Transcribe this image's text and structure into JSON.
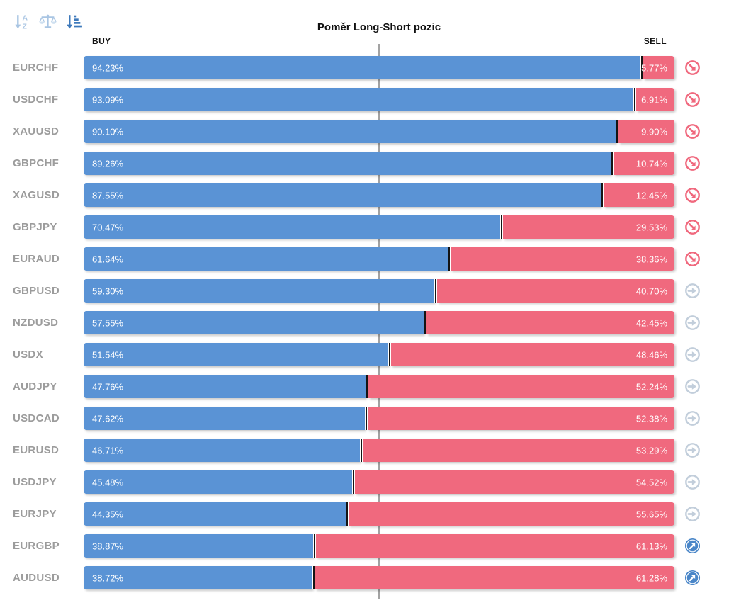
{
  "title": "Poměr Long-Short pozic",
  "headers": {
    "buy": "BUY",
    "sell": "SELL"
  },
  "toolbar": {
    "icons": [
      {
        "name": "sort-alphabetical-icon",
        "state": "inactive"
      },
      {
        "name": "balance-scale-icon",
        "state": "inactive"
      },
      {
        "name": "sort-amount-desc-icon",
        "state": "active"
      }
    ]
  },
  "colors": {
    "buy_bar": "#5a93d5",
    "sell_bar": "#f0697e",
    "divider": "#141414",
    "label_gray": "#9c9c9c",
    "center_line": "#a3a3a3",
    "icon_red": "#f0697e",
    "icon_gray": "#c2cedb",
    "icon_blue": "#4a86c8",
    "toolbar_active": "#3d79bb",
    "toolbar_inactive": "#a9c5e3"
  },
  "rows": [
    {
      "symbol": "EURCHF",
      "buy": 94.23,
      "sell": 5.77,
      "buy_label": "94.23%",
      "sell_label": "5.77%",
      "trend": "down"
    },
    {
      "symbol": "USDCHF",
      "buy": 93.09,
      "sell": 6.91,
      "buy_label": "93.09%",
      "sell_label": "6.91%",
      "trend": "down"
    },
    {
      "symbol": "XAUUSD",
      "buy": 90.1,
      "sell": 9.9,
      "buy_label": "90.10%",
      "sell_label": "9.90%",
      "trend": "down"
    },
    {
      "symbol": "GBPCHF",
      "buy": 89.26,
      "sell": 10.74,
      "buy_label": "89.26%",
      "sell_label": "10.74%",
      "trend": "down"
    },
    {
      "symbol": "XAGUSD",
      "buy": 87.55,
      "sell": 12.45,
      "buy_label": "87.55%",
      "sell_label": "12.45%",
      "trend": "down"
    },
    {
      "symbol": "GBPJPY",
      "buy": 70.47,
      "sell": 29.53,
      "buy_label": "70.47%",
      "sell_label": "29.53%",
      "trend": "down"
    },
    {
      "symbol": "EURAUD",
      "buy": 61.64,
      "sell": 38.36,
      "buy_label": "61.64%",
      "sell_label": "38.36%",
      "trend": "down"
    },
    {
      "symbol": "GBPUSD",
      "buy": 59.3,
      "sell": 40.7,
      "buy_label": "59.30%",
      "sell_label": "40.70%",
      "trend": "flat"
    },
    {
      "symbol": "NZDUSD",
      "buy": 57.55,
      "sell": 42.45,
      "buy_label": "57.55%",
      "sell_label": "42.45%",
      "trend": "flat"
    },
    {
      "symbol": "USDX",
      "buy": 51.54,
      "sell": 48.46,
      "buy_label": "51.54%",
      "sell_label": "48.46%",
      "trend": "flat"
    },
    {
      "symbol": "AUDJPY",
      "buy": 47.76,
      "sell": 52.24,
      "buy_label": "47.76%",
      "sell_label": "52.24%",
      "trend": "flat"
    },
    {
      "symbol": "USDCAD",
      "buy": 47.62,
      "sell": 52.38,
      "buy_label": "47.62%",
      "sell_label": "52.38%",
      "trend": "flat"
    },
    {
      "symbol": "EURUSD",
      "buy": 46.71,
      "sell": 53.29,
      "buy_label": "46.71%",
      "sell_label": "53.29%",
      "trend": "flat"
    },
    {
      "symbol": "USDJPY",
      "buy": 45.48,
      "sell": 54.52,
      "buy_label": "45.48%",
      "sell_label": "54.52%",
      "trend": "flat"
    },
    {
      "symbol": "EURJPY",
      "buy": 44.35,
      "sell": 55.65,
      "buy_label": "44.35%",
      "sell_label": "55.65%",
      "trend": "flat"
    },
    {
      "symbol": "EURGBP",
      "buy": 38.87,
      "sell": 61.13,
      "buy_label": "38.87%",
      "sell_label": "61.13%",
      "trend": "up"
    },
    {
      "symbol": "AUDUSD",
      "buy": 38.72,
      "sell": 61.28,
      "buy_label": "38.72%",
      "sell_label": "61.28%",
      "trend": "up"
    }
  ],
  "chart_data": {
    "type": "bar",
    "orientation": "horizontal",
    "stacked": true,
    "title": "Poměr Long-Short pozic",
    "xlabel": "",
    "ylabel": "",
    "xlim": [
      0,
      100
    ],
    "grid": false,
    "reference_line_pct": 50,
    "categories": [
      "EURCHF",
      "USDCHF",
      "XAUUSD",
      "GBPCHF",
      "XAGUSD",
      "GBPJPY",
      "EURAUD",
      "GBPUSD",
      "NZDUSD",
      "USDX",
      "AUDJPY",
      "USDCAD",
      "EURUSD",
      "USDJPY",
      "EURJPY",
      "EURGBP",
      "AUDUSD"
    ],
    "series": [
      {
        "name": "BUY",
        "color": "#5a93d5",
        "values": [
          94.23,
          93.09,
          90.1,
          89.26,
          87.55,
          70.47,
          61.64,
          59.3,
          57.55,
          51.54,
          47.76,
          47.62,
          46.71,
          45.48,
          44.35,
          38.87,
          38.72
        ]
      },
      {
        "name": "SELL",
        "color": "#f0697e",
        "values": [
          5.77,
          6.91,
          9.9,
          10.74,
          12.45,
          29.53,
          38.36,
          40.7,
          42.45,
          48.46,
          52.24,
          52.38,
          53.29,
          54.52,
          55.65,
          61.13,
          61.28
        ]
      }
    ],
    "trend_markers": [
      "down",
      "down",
      "down",
      "down",
      "down",
      "down",
      "down",
      "flat",
      "flat",
      "flat",
      "flat",
      "flat",
      "flat",
      "flat",
      "flat",
      "up",
      "up"
    ]
  }
}
